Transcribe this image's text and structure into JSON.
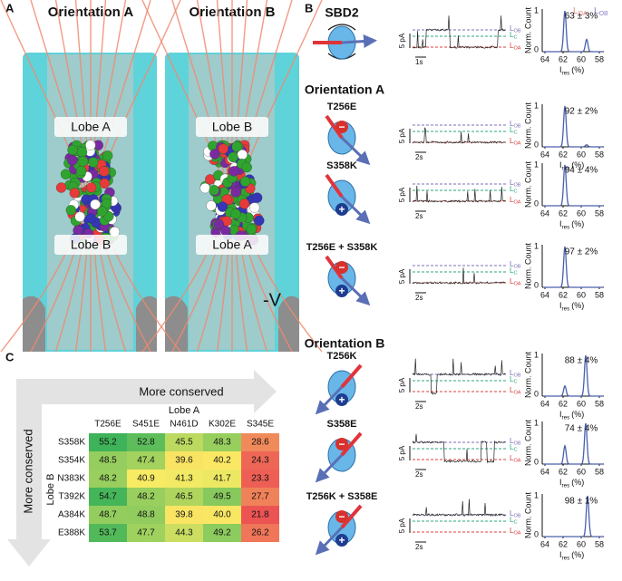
{
  "panel_a": {
    "label": "A",
    "titles": [
      "Orientation A",
      "Orientation B"
    ],
    "lobes": [
      [
        "Lobe A",
        "Lobe B"
      ],
      [
        "Lobe B",
        "Lobe A"
      ]
    ],
    "voltage": "-V"
  },
  "panel_b": {
    "label": "B",
    "headers": [
      "Orientation A",
      "Orientation B"
    ],
    "levels": [
      {
        "letter": "L",
        "sub": "OB"
      },
      {
        "letter": "L",
        "sub": "C"
      },
      {
        "letter": "L",
        "sub": "OA"
      }
    ],
    "current_scale": "5 pA",
    "histogram": {
      "legend": [
        {
          "letter": "L",
          "sub": "OA"
        },
        {
          "letter": "L",
          "sub": "OB"
        }
      ],
      "ylabel": "Norm. Count",
      "yticks": [
        "0",
        "1"
      ],
      "xticks": [
        "64",
        "62",
        "60",
        "58"
      ],
      "xlabel": {
        "letter": "I",
        "sub": "res",
        "unit": "(%)"
      }
    },
    "rows": [
      {
        "name": "SBD2",
        "time": "1s",
        "charges": [],
        "result": "63 ± 3%"
      },
      {
        "name": "T256E",
        "time": "2s",
        "charges": [
          "−"
        ],
        "result": "92 ± 2%"
      },
      {
        "name": "S358K",
        "time": "2s",
        "charges": [
          "+"
        ],
        "result": "94 ± 4%"
      },
      {
        "name": "T256E + S358K",
        "time": "2s",
        "charges": [
          "−",
          "+"
        ],
        "result": "97 ± 2%"
      },
      {
        "name": "T256K",
        "time": "2s",
        "charges": [
          "+"
        ],
        "result": "88 ± 4%"
      },
      {
        "name": "S358E",
        "time": "2s",
        "charges": [
          "−"
        ],
        "result": "74 ± 4%"
      },
      {
        "name": "T256K + S358E",
        "time": "2s",
        "charges": [
          "−",
          "+"
        ],
        "result": "98 ± 1%"
      }
    ]
  },
  "panel_c": {
    "label": "C",
    "axis_top": "More conserved",
    "axis_left": "More conserved",
    "table": {
      "col_title": "Lobe A",
      "row_title": "Lobe B",
      "columns": [
        "T256E",
        "S451E",
        "N461D",
        "K302E",
        "S345E"
      ],
      "rows": [
        {
          "label": "S358K",
          "cells": [
            "55.2",
            "52.8",
            "45.5",
            "48.3",
            "28.6"
          ]
        },
        {
          "label": "S354K",
          "cells": [
            "48.5",
            "47.4",
            "39.6",
            "40.2",
            "24.3"
          ]
        },
        {
          "label": "N383K",
          "cells": [
            "48.2",
            "40.9",
            "41.3",
            "41.7",
            "23.3"
          ]
        },
        {
          "label": "T392K",
          "cells": [
            "54.7",
            "48.2",
            "46.5",
            "49.5",
            "27.7"
          ]
        },
        {
          "label": "A384K",
          "cells": [
            "48.7",
            "48.8",
            "39.8",
            "40.0",
            "21.8"
          ]
        },
        {
          "label": "E388K",
          "cells": [
            "53.7",
            "47.7",
            "44.3",
            "49.2",
            "26.2"
          ]
        }
      ]
    }
  }
}
